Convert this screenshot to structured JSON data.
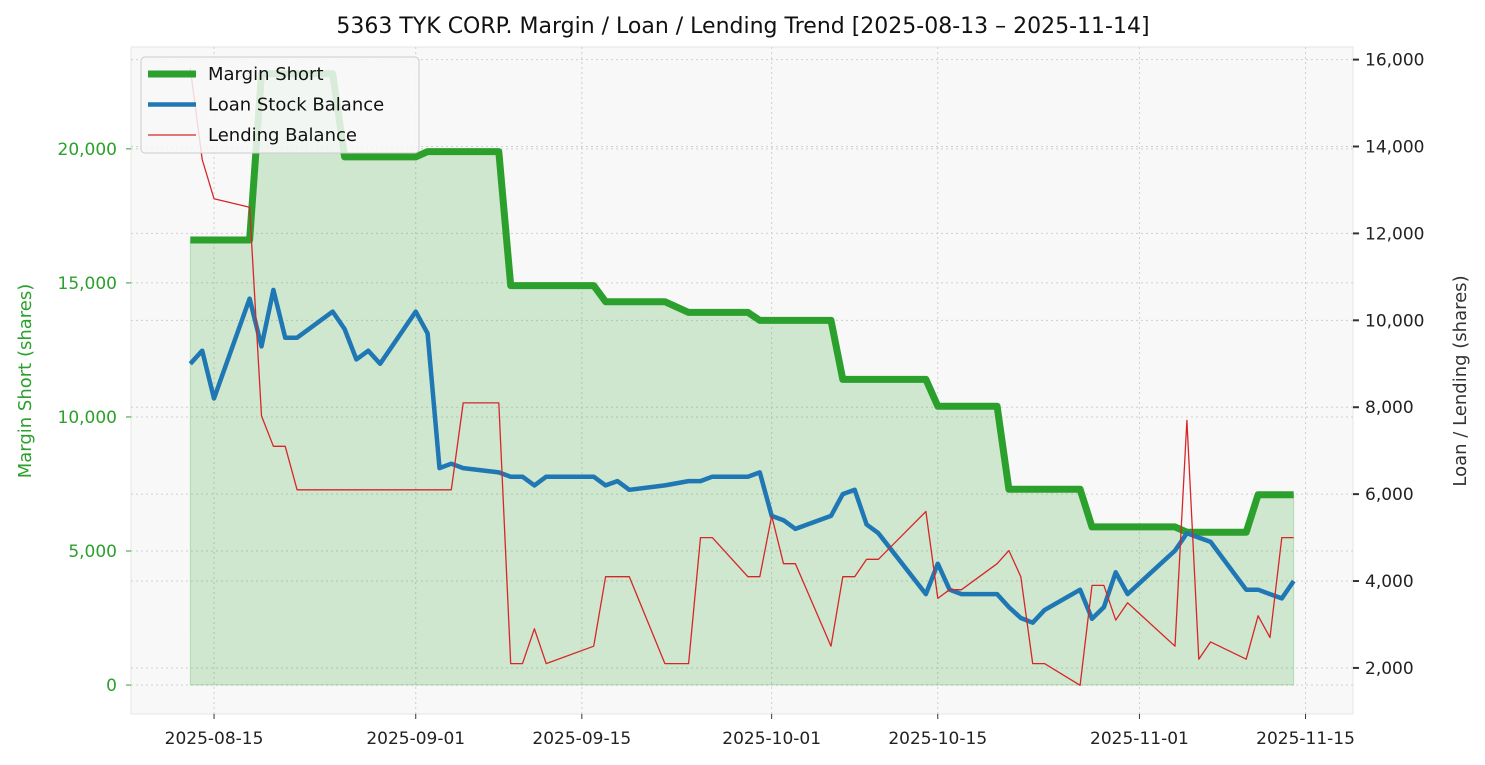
{
  "chart_data": {
    "type": "line",
    "title": "5363 TYK CORP. Margin / Loan / Lending Trend [2025-08-13 – 2025-11-14]",
    "xlabel": "",
    "ylabel_left": "Margin Short (shares)",
    "ylabel_right": "Loan / Lending (shares)",
    "xlim": [
      "2025-08-08",
      "2025-11-19"
    ],
    "ylim_left": [
      -1080,
      23800
    ],
    "ylim_right": [
      940,
      16290
    ],
    "x_ticks": [
      "2025-08-15",
      "2025-09-01",
      "2025-09-15",
      "2025-10-01",
      "2025-10-15",
      "2025-11-01",
      "2025-11-15"
    ],
    "y_ticks_left": [
      0,
      5000,
      10000,
      15000,
      20000
    ],
    "y_ticks_left_labels": [
      "0",
      "5,000",
      "10,000",
      "15,000",
      "20,000"
    ],
    "y_ticks_right": [
      2000,
      4000,
      6000,
      8000,
      10000,
      12000,
      14000,
      16000
    ],
    "y_ticks_right_labels": [
      "2,000",
      "4,000",
      "6,000",
      "8,000",
      "10,000",
      "12,000",
      "14,000",
      "16,000"
    ],
    "grid": true,
    "legend_position": "top-left",
    "x": [
      "2025-08-13",
      "2025-08-14",
      "2025-08-15",
      "2025-08-18",
      "2025-08-19",
      "2025-08-20",
      "2025-08-21",
      "2025-08-22",
      "2025-08-25",
      "2025-08-26",
      "2025-08-27",
      "2025-08-28",
      "2025-08-29",
      "2025-09-01",
      "2025-09-02",
      "2025-09-03",
      "2025-09-04",
      "2025-09-05",
      "2025-09-08",
      "2025-09-09",
      "2025-09-10",
      "2025-09-11",
      "2025-09-12",
      "2025-09-16",
      "2025-09-17",
      "2025-09-18",
      "2025-09-19",
      "2025-09-22",
      "2025-09-24",
      "2025-09-25",
      "2025-09-26",
      "2025-09-29",
      "2025-09-30",
      "2025-10-01",
      "2025-10-02",
      "2025-10-03",
      "2025-10-06",
      "2025-10-07",
      "2025-10-08",
      "2025-10-09",
      "2025-10-10",
      "2025-10-14",
      "2025-10-15",
      "2025-10-16",
      "2025-10-17",
      "2025-10-20",
      "2025-10-21",
      "2025-10-22",
      "2025-10-23",
      "2025-10-24",
      "2025-10-27",
      "2025-10-28",
      "2025-10-29",
      "2025-10-30",
      "2025-10-31",
      "2025-11-04",
      "2025-11-05",
      "2025-11-06",
      "2025-11-07",
      "2025-11-10",
      "2025-11-11",
      "2025-11-12",
      "2025-11-13",
      "2025-11-14"
    ],
    "series": [
      {
        "name": "Margin Short",
        "axis": "left",
        "color": "#2ca02c",
        "fill": true,
        "values": [
          16600,
          16600,
          16600,
          16600,
          22800,
          22800,
          22800,
          22800,
          22800,
          19700,
          19700,
          19700,
          19700,
          19700,
          19900,
          19900,
          19900,
          19900,
          19900,
          14900,
          14900,
          14900,
          14900,
          14900,
          14300,
          14300,
          14300,
          14300,
          13900,
          13900,
          13900,
          13900,
          13600,
          13600,
          13600,
          13600,
          13600,
          11400,
          11400,
          11400,
          11400,
          11400,
          10400,
          10400,
          10400,
          10400,
          7300,
          7300,
          7300,
          7300,
          7300,
          5900,
          5900,
          5900,
          5900,
          5900,
          5700,
          5700,
          5700,
          5700,
          7100,
          7100,
          7100,
          7100
        ]
      },
      {
        "name": "Loan Stock Balance",
        "axis": "right",
        "color": "#1f77b4",
        "values": [
          9000,
          9300,
          8200,
          10500,
          9400,
          10700,
          9600,
          9600,
          10200,
          9800,
          9100,
          9300,
          9000,
          10200,
          9700,
          6600,
          6700,
          6600,
          6500,
          6400,
          6400,
          6200,
          6400,
          6400,
          6200,
          6300,
          6100,
          6200,
          6300,
          6300,
          6400,
          6400,
          6500,
          5500,
          5400,
          5200,
          5500,
          6000,
          6100,
          5300,
          5100,
          3700,
          4400,
          3800,
          3700,
          3700,
          3400,
          3150,
          3040,
          3330,
          3800,
          3130,
          3400,
          4200,
          3700,
          4700,
          5100,
          5000,
          4900,
          3800,
          3800,
          3700,
          3600,
          4000
        ]
      },
      {
        "name": "Lending Balance",
        "axis": "right",
        "color": "#d62728",
        "values": [
          15800,
          13700,
          12800,
          12600,
          7800,
          7100,
          7100,
          6100,
          6100,
          6100,
          6100,
          6100,
          6100,
          6100,
          6100,
          6100,
          6100,
          8100,
          8100,
          2100,
          2100,
          2900,
          2100,
          2500,
          4100,
          4100,
          4100,
          2100,
          2100,
          5000,
          5000,
          4100,
          4100,
          5500,
          4400,
          4400,
          2500,
          4100,
          4100,
          4500,
          4500,
          5600,
          3600,
          3800,
          3800,
          4400,
          4700,
          4100,
          2100,
          2100,
          1600,
          3900,
          3900,
          3100,
          3500,
          2500,
          7700,
          2200,
          2600,
          2200,
          3200,
          2700,
          5000,
          5000
        ]
      }
    ]
  }
}
